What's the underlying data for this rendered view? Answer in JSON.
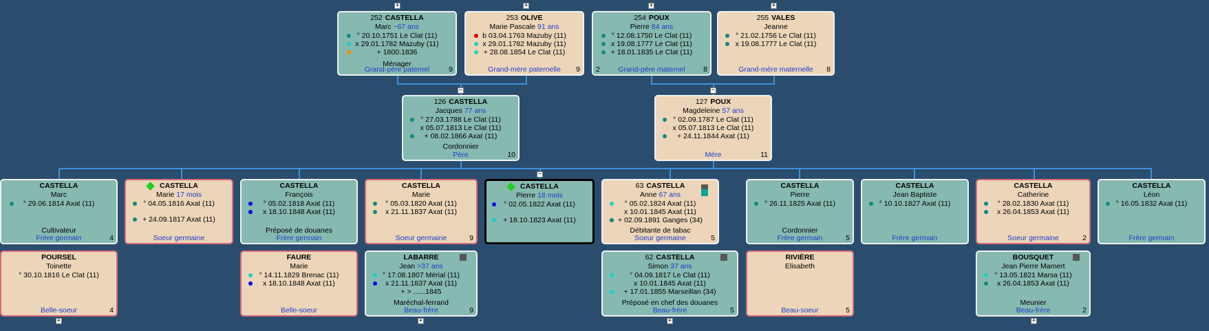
{
  "colors": {
    "male_bg": "#86b9b0",
    "female_bg": "#ecd5b9",
    "relation_text": "#1d3dcc",
    "connector": "#3f8fd8",
    "background": "#2a4d6e"
  },
  "controls": {
    "plus": "+",
    "minus": "−"
  },
  "grandparents": [
    {
      "num": "252",
      "surname": "CASTELLA",
      "given": "Marc",
      "age": "~67 ans",
      "events": [
        "° 20.10.1751 Le Clat (11)",
        "x 29.01.1782 Mazuby (11)",
        "+ 1800.1836"
      ],
      "occupation": "Ménager",
      "relation": "Grand-père paternel",
      "count": "9"
    },
    {
      "num": "253",
      "surname": "OLIVE",
      "given": "Marie Pascale",
      "age": "91 ans",
      "events": [
        "b 03.04.1763 Mazuby (11)",
        "x 29.01.1782 Mazuby (11)",
        "+ 28.08.1854 Le Clat (11)"
      ],
      "relation": "Grand-mère paternelle",
      "count": "9"
    },
    {
      "num": "254",
      "surname": "POUX",
      "given": "Pierre",
      "age": "84 ans",
      "events": [
        "° 12.08.1750 Le Clat (11)",
        "x 19.08.1777 Le Clat (11)",
        "+ 18.01.1835 Le Clat (11)"
      ],
      "relation": "Grand-père maternel",
      "count": "8",
      "count_left": "2"
    },
    {
      "num": "255",
      "surname": "VALES",
      "given": "Jeanne",
      "events": [
        "° 21.02.1756 Le Clat (11)",
        "x 19.08.1777 Le Clat (11)"
      ],
      "relation": "Grand-mère maternelle",
      "count": "8"
    }
  ],
  "parents": [
    {
      "num": "126",
      "surname": "CASTELLA",
      "given": "Jacques",
      "age": "77 ans",
      "events": [
        "° 27.03.1788 Le Clat (11)",
        "x 05.07.1813 Le Clat (11)",
        "+ 08.02.1866 Axat (11)"
      ],
      "occupation": "Cordonnier",
      "relation": "Père",
      "count": "10"
    },
    {
      "num": "127",
      "surname": "POUX",
      "given": "Magdeleine",
      "age": "57 ans",
      "events": [
        "° 02.09.1787 Le Clat (11)",
        "x 05.07.1813 Le Clat (11)",
        "+ 24.11.1844 Axat (11)"
      ],
      "relation": "Mère",
      "count": "11"
    }
  ],
  "siblings": [
    {
      "surname": "CASTELLA",
      "given": "Marc",
      "events": [
        "° 29.06.1814 Axat (11)"
      ],
      "occupation": "Cultivateur",
      "relation": "Frère germain",
      "count": "4"
    },
    {
      "surname": "CASTELLA",
      "given": "Marie",
      "age": "17 mois",
      "events": [
        "° 04.05.1816 Axat (11)",
        "+ 24.09.1817 Axat (11)"
      ],
      "relation": "Soeur germaine"
    },
    {
      "surname": "CASTELLA",
      "given": "François",
      "events": [
        "° 05.02.1818 Axat (11)",
        "x 18.10.1848 Axat (11)"
      ],
      "occupation": "Préposé de douanes",
      "relation": "Frère germain"
    },
    {
      "surname": "CASTELLA",
      "given": "Marie",
      "events": [
        "° 05.03.1820 Axat (11)",
        "x 21.11.1837 Axat (11)"
      ],
      "relation": "Soeur germaine",
      "count": "9"
    },
    {
      "surname": "CASTELLA",
      "given": "Pierre",
      "age": "18 mois",
      "events": [
        "° 02.05.1822 Axat (11)",
        "+ 18.10.1823 Axat (11)"
      ]
    },
    {
      "num": "63",
      "surname": "CASTELLA",
      "given": "Anne",
      "age": "67 ans",
      "events": [
        "° 05.02.1824 Axat (11)",
        "x 10.01.1845 Axat (11)",
        "+ 02.09.1891 Ganges (34)"
      ],
      "occupation": "Débitante de tabac",
      "relation": "Soeur germaine",
      "count": "5"
    },
    {
      "surname": "CASTELLA",
      "given": "Pierre",
      "events": [
        "° 26.11.1825 Axat (11)"
      ],
      "occupation": "Cordonnier",
      "relation": "Frère germain",
      "count": "5"
    },
    {
      "surname": "CASTELLA",
      "given": "Jean Baptiste",
      "events": [
        "° 10.10.1827 Axat (11)"
      ],
      "relation": "Frère germain"
    },
    {
      "surname": "CASTELLA",
      "given": "Catherine",
      "events": [
        "° 28.02.1830 Axat (11)",
        "x 26.04.1853 Axat (11)"
      ],
      "relation": "Soeur germaine",
      "count": "2"
    },
    {
      "surname": "CASTELLA",
      "given": "Léon",
      "events": [
        "° 16.05.1832 Axat (11)"
      ],
      "relation": "Frère germain"
    }
  ],
  "spouses": [
    {
      "surname": "POURSEL",
      "given": "Toinette",
      "events": [
        "° 30.10.1816 Le Clat (11)"
      ],
      "relation": "Belle-soeur",
      "count": "4"
    },
    {
      "surname": "FAURE",
      "given": "Marie",
      "events": [
        "° 14.11.1829 Brenac (11)",
        "x 18.10.1848 Axat (11)"
      ],
      "relation": "Belle-soeur"
    },
    {
      "surname": "LABARRE",
      "given": "Jean",
      "age": ">37 ans",
      "events": [
        "° 17.08.1807 Mérial (11)",
        "x 21.11.1837 Axat (11)",
        "+ > ......1845"
      ],
      "occupation": "Maréchal-ferrand",
      "relation": "Beau-frère",
      "count": "9"
    },
    {
      "num": "62",
      "surname": "CASTELLA",
      "given": "Simon",
      "age": "37 ans",
      "events": [
        "° 04.09.1817 Le Clat (11)",
        "x 10.01.1845 Axat (11)",
        "+ 17.01.1855 Marseillan (34)"
      ],
      "occupation": "Préposé en chef des douanes",
      "relation": "Beau-frère",
      "count": "5"
    },
    {
      "surname": "RIVIÈRE",
      "given": "Elisabeth",
      "relation": "Beau-soeur",
      "count": "5"
    },
    {
      "surname": "BOUSQUET",
      "given": "Jean Pierre Mamert",
      "events": [
        "° 13.05.1821 Marsa (11)",
        "x 26.04.1853 Axat (11)"
      ],
      "occupation": "Meunier",
      "relation": "Beau-frère",
      "count": "2"
    }
  ]
}
